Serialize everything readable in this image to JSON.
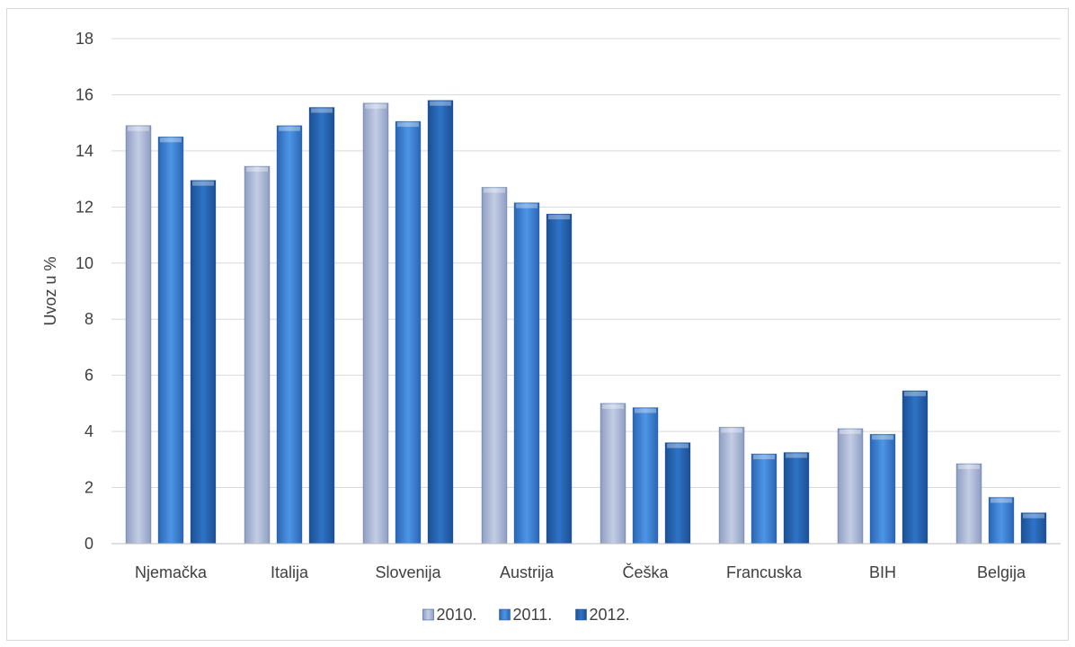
{
  "chart_data": {
    "type": "bar",
    "title": "",
    "xlabel": "",
    "ylabel": "Uvoz u %",
    "ylim": [
      0,
      18
    ],
    "yticks": [
      0,
      2,
      4,
      6,
      8,
      10,
      12,
      14,
      16,
      18
    ],
    "grid": true,
    "legend_position": "bottom",
    "categories": [
      "Njemačka",
      "Italija",
      "Slovenija",
      "Austrija",
      "Češka",
      "Francuska",
      "BIH",
      "Belgija"
    ],
    "series": [
      {
        "name": "2010.",
        "color": "#a9b7d6",
        "values": [
          14.9,
          13.45,
          15.7,
          12.7,
          5.0,
          4.15,
          4.1,
          2.85
        ]
      },
      {
        "name": "2011.",
        "color": "#3d7fd1",
        "values": [
          14.5,
          14.9,
          15.05,
          12.15,
          4.85,
          3.2,
          3.9,
          1.65
        ]
      },
      {
        "name": "2012.",
        "color": "#2563b0",
        "values": [
          12.95,
          15.55,
          15.8,
          11.75,
          3.6,
          3.25,
          5.45,
          1.1
        ]
      }
    ]
  }
}
